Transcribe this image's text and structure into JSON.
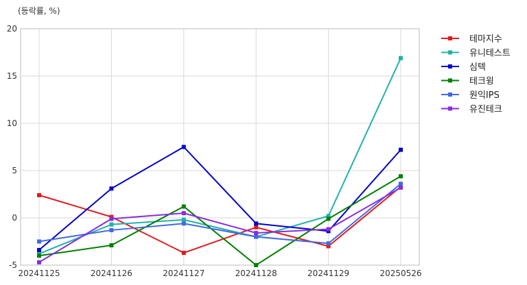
{
  "chart_data": {
    "type": "line",
    "unit_label": "(등락률, %)",
    "x": [
      "20241125",
      "20241126",
      "20241127",
      "20241128",
      "20241129",
      "20250526"
    ],
    "ylim": [
      -5,
      20
    ],
    "yticks": [
      -5,
      0,
      5,
      10,
      15,
      20
    ],
    "grid": true,
    "legend_position": "right",
    "series": [
      {
        "name": "테마지수",
        "color": "#e31a1c",
        "values": [
          2.4,
          0.1,
          -3.7,
          -1.0,
          -3.0,
          3.3
        ]
      },
      {
        "name": "유니테스트",
        "color": "#20b2aa",
        "values": [
          -3.8,
          -0.7,
          -0.2,
          -2.0,
          0.2,
          16.9
        ]
      },
      {
        "name": "심텍",
        "color": "#0000cd",
        "values": [
          -3.4,
          3.1,
          7.5,
          -0.6,
          -1.4,
          7.2
        ]
      },
      {
        "name": "테크윙",
        "color": "#008000",
        "values": [
          -4.0,
          -2.9,
          1.2,
          -5.0,
          -0.1,
          4.4
        ]
      },
      {
        "name": "원익IPS",
        "color": "#4169e1",
        "values": [
          -2.5,
          -1.3,
          -0.6,
          -2.0,
          -2.7,
          3.6
        ]
      },
      {
        "name": "유진테크",
        "color": "#8a2be2",
        "values": [
          -4.7,
          -0.1,
          0.5,
          -1.6,
          -1.2,
          3.2
        ]
      }
    ]
  }
}
